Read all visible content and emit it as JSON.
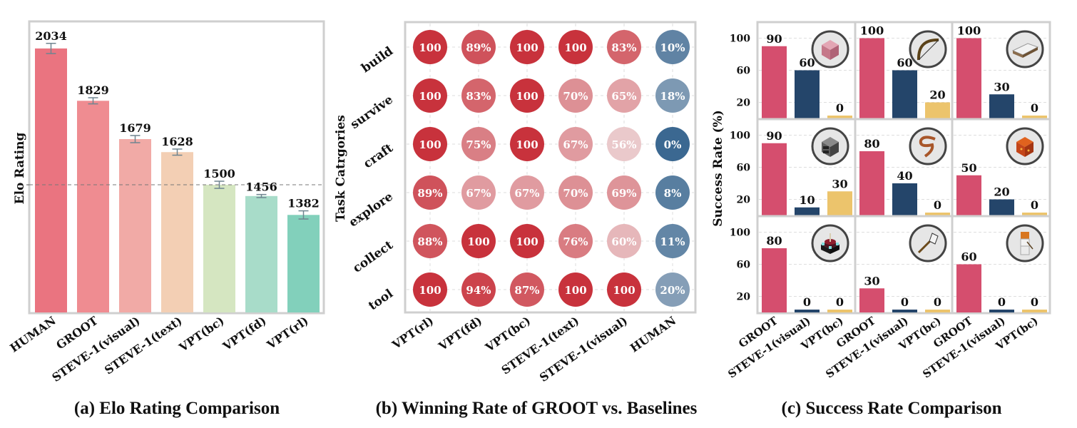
{
  "chart_data": [
    {
      "type": "bar",
      "panel": "a",
      "caption": "(a) Elo Rating Comparison",
      "title": "",
      "xlabel": "",
      "ylabel": "Elo Rating",
      "ylim": [
        1000,
        2140
      ],
      "reference_line": 1500,
      "ytick_labels_shown": false,
      "grid": false,
      "categories": [
        "HUMAN",
        "GROOT",
        "STEVE-1(visual)",
        "STEVE-1(text)",
        "VPT(bc)",
        "VPT(fd)",
        "VPT(rl)"
      ],
      "values": [
        2034,
        1829,
        1679,
        1628,
        1500,
        1456,
        1382
      ],
      "error": [
        20,
        12,
        14,
        12,
        14,
        6,
        16
      ],
      "colors": [
        "#ea7480",
        "#ef8c91",
        "#f1aaa6",
        "#f3cfb4",
        "#d5e6c1",
        "#a8dcc9",
        "#82d0bb"
      ],
      "error_color": "#6f8590"
    },
    {
      "type": "heatmap",
      "panel": "b",
      "caption": "(b) Winning Rate of GROOT vs. Baselines",
      "xlabel": "",
      "ylabel": "Task Catrgories",
      "x_categories": [
        "VPT(rl)",
        "VPT(fd)",
        "VPT(bc)",
        "STEVE-1(text)",
        "STEVE-1(visual)",
        "HUMAN"
      ],
      "y_categories": [
        "build",
        "survive",
        "craft",
        "explore",
        "collect",
        "tool"
      ],
      "values": [
        [
          100,
          89,
          100,
          100,
          83,
          10
        ],
        [
          100,
          83,
          100,
          70,
          65,
          18
        ],
        [
          100,
          75,
          100,
          67,
          56,
          0
        ],
        [
          89,
          67,
          67,
          70,
          69,
          8
        ],
        [
          88,
          100,
          100,
          76,
          60,
          11
        ],
        [
          100,
          94,
          87,
          100,
          100,
          20
        ]
      ],
      "labels": [
        [
          "100",
          "89%",
          "100",
          "100",
          "83%",
          "10%"
        ],
        [
          "100",
          "83%",
          "100",
          "70%",
          "65%",
          "18%"
        ],
        [
          "100",
          "75%",
          "100",
          "67%",
          "56%",
          "0%"
        ],
        [
          "89%",
          "67%",
          "67%",
          "70%",
          "69%",
          "8%"
        ],
        [
          "88%",
          "100",
          "100",
          "76%",
          "60%",
          "11%"
        ],
        [
          "100",
          "94%",
          "87%",
          "100",
          "100",
          "20%"
        ]
      ],
      "colormap": {
        "low": "#3b6891",
        "mid": "#f3f0f0",
        "high": "#c8323c"
      }
    },
    {
      "type": "bar",
      "panel": "c",
      "caption": "(c) Success Rate Comparison",
      "ylabel": "Success Rate (%)",
      "ylim": [
        0,
        120
      ],
      "yticks": [
        20,
        60,
        100
      ],
      "grid": true,
      "categories": [
        "GROOT",
        "STEVE-1(visual)",
        "VPT(bc)"
      ],
      "colors": [
        "#d54e6e",
        "#24456a",
        "#ecc46c"
      ],
      "subplots": [
        {
          "icon": "pink-wool-block-icon",
          "values": [
            90,
            60,
            0
          ]
        },
        {
          "icon": "bow-icon",
          "values": [
            100,
            60,
            20
          ]
        },
        {
          "icon": "bed-icon",
          "values": [
            100,
            30,
            0
          ]
        },
        {
          "icon": "furnace-icon",
          "values": [
            90,
            10,
            30
          ]
        },
        {
          "icon": "lead-rope-icon",
          "values": [
            80,
            40,
            0
          ]
        },
        {
          "icon": "magma-block-icon",
          "values": [
            50,
            20,
            0
          ]
        },
        {
          "icon": "enchanting-table-icon",
          "values": [
            80,
            0,
            0
          ]
        },
        {
          "icon": "shovel-icon",
          "values": [
            30,
            0,
            0
          ]
        },
        {
          "icon": "snow-golem-icon",
          "values": [
            60,
            0,
            0
          ]
        }
      ]
    }
  ]
}
